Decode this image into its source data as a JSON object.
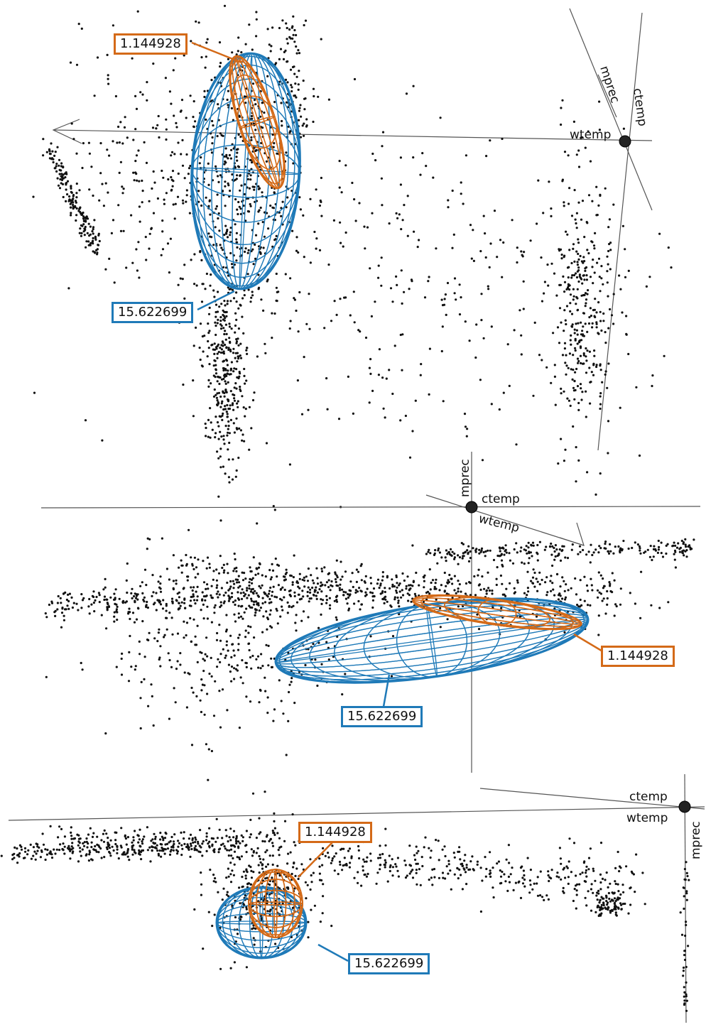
{
  "colors": {
    "points": "#111111",
    "blue_ellipsoid": "#1f7ab8",
    "orange_ellipsoid": "#d46a18",
    "axis_line": "#555555"
  },
  "panels": [
    {
      "axes": {
        "x_label": "wtemp",
        "y_label": "mprec",
        "z_label": "ctemp"
      },
      "annotations": {
        "orange": "1.144928",
        "blue": "15.622699"
      }
    },
    {
      "axes": {
        "x_label": "wtemp",
        "y_label": "mprec",
        "z_label": "ctemp"
      },
      "annotations": {
        "orange": "1.144928",
        "blue": "15.622699"
      }
    },
    {
      "axes": {
        "x_label": "wtemp",
        "y_label": "mprec",
        "z_label": "ctemp"
      },
      "annotations": {
        "orange": "1.144928",
        "blue": "15.622699"
      }
    }
  ]
}
